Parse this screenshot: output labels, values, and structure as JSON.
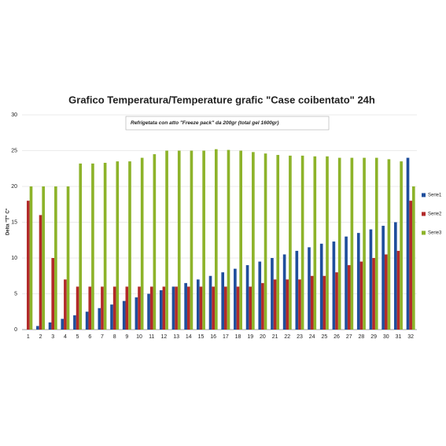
{
  "chart_data": {
    "type": "bar",
    "title": "Grafico Temperatura/Temperature grafic  \"Case coibentato\" 24h",
    "annotation": "Refrigetata con atto \"Freeze pack\" da 200gr (total gel 1600gr)",
    "y_label": "Delta \"T\" C°",
    "categories": [
      "1",
      "2",
      "3",
      "4",
      "5",
      "6",
      "7",
      "8",
      "9",
      "10",
      "11",
      "12",
      "13",
      "14",
      "15",
      "16",
      "17",
      "18",
      "19",
      "20",
      "21",
      "22",
      "23",
      "24",
      "25",
      "26",
      "27",
      "28",
      "29",
      "30",
      "31",
      "32"
    ],
    "series": [
      {
        "name": "Serie1",
        "color": "#1f4e9c",
        "values": [
          0,
          0.5,
          1,
          1.5,
          2,
          2.5,
          3,
          3.5,
          4,
          4.5,
          5,
          5.5,
          6,
          6.5,
          7,
          7.5,
          8,
          8.5,
          9,
          9.5,
          10,
          10.5,
          11,
          11.5,
          12,
          12.3,
          13,
          13.5,
          14,
          14.5,
          15,
          24
        ]
      },
      {
        "name": "Serie2",
        "color": "#b22a2a",
        "values": [
          18,
          16,
          10,
          7,
          6,
          6,
          6,
          6,
          6,
          6,
          6,
          6,
          6,
          6,
          6,
          6,
          6,
          6,
          6,
          6.5,
          7,
          7,
          7,
          7.5,
          7.5,
          8,
          9,
          9.5,
          10,
          10.5,
          11,
          18
        ]
      },
      {
        "name": "Serie3",
        "color": "#8db32a",
        "values": [
          20,
          20,
          20,
          20,
          23.2,
          23.2,
          23.3,
          23.5,
          23.5,
          24,
          24.5,
          25,
          25,
          25,
          25,
          25.2,
          25.1,
          25,
          24.8,
          24.6,
          24.4,
          24.3,
          24.3,
          24.2,
          24.2,
          24,
          24,
          24,
          24,
          23.8,
          23.5,
          20
        ]
      }
    ],
    "ylim": [
      0,
      30
    ],
    "yticks": [
      0,
      5,
      10,
      15,
      20,
      25,
      30
    ],
    "grid": true,
    "legend": "right"
  }
}
